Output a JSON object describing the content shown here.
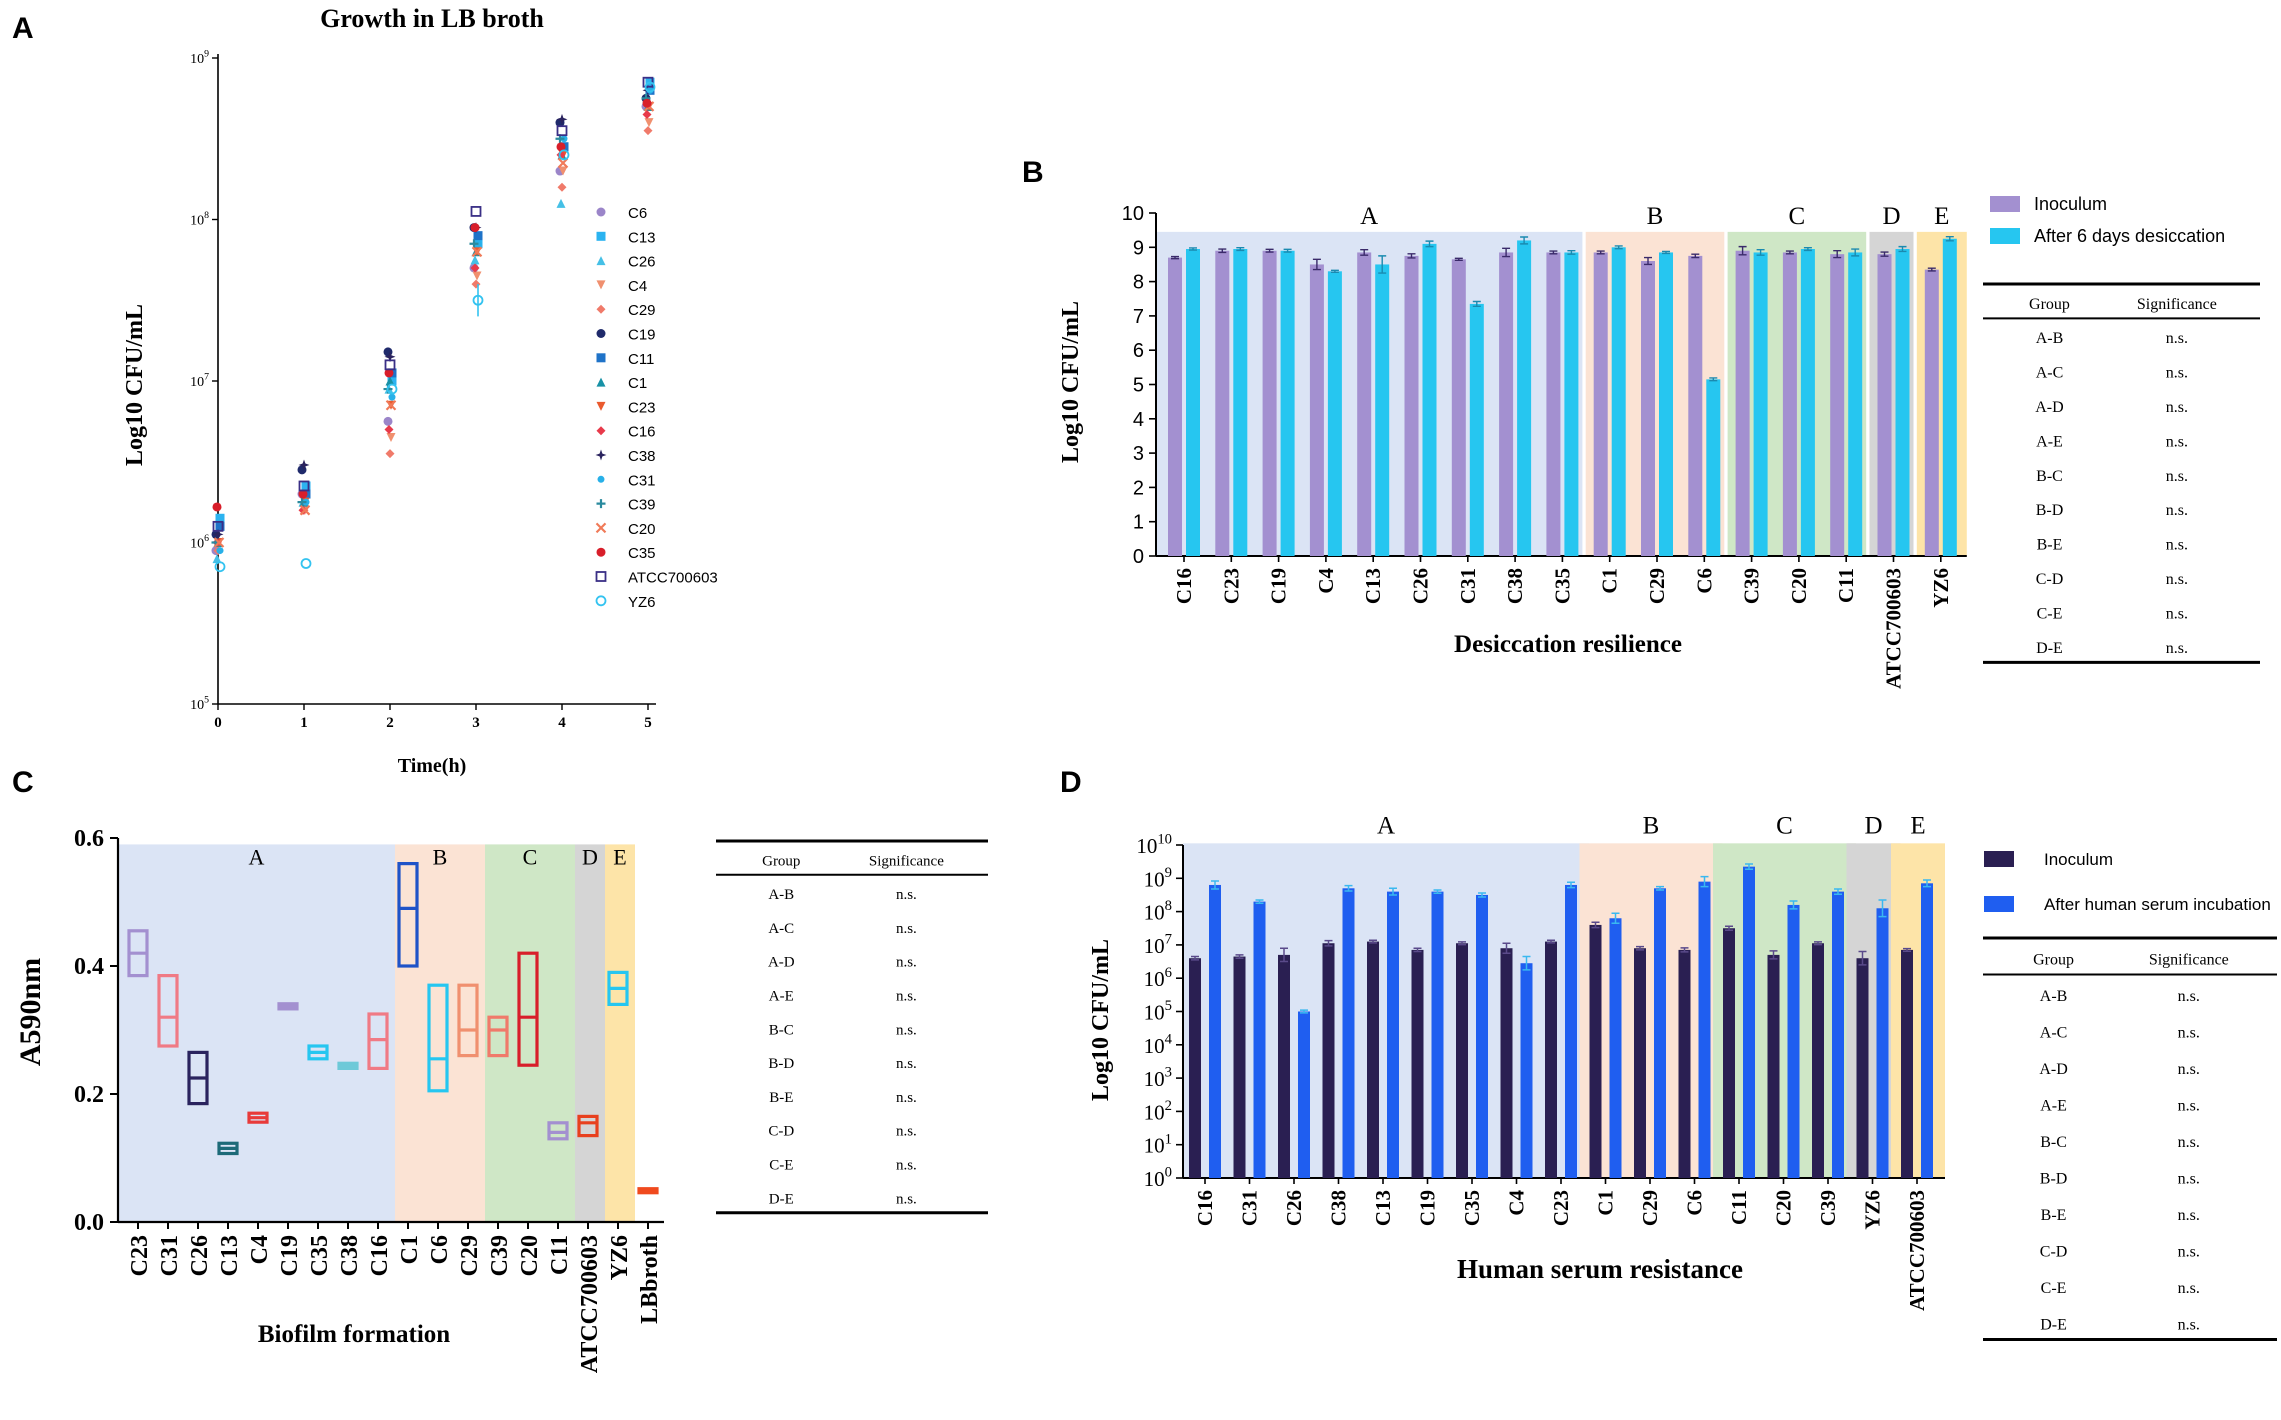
{
  "panel_letters": [
    "A",
    "B",
    "C",
    "D"
  ],
  "chart_data": [
    {
      "panel": "A",
      "type": "scatter",
      "title": "Growth in LB broth",
      "xlabel": "Time(h)",
      "ylabel": "Log10 CFU/mL",
      "x_ticks": [
        "0",
        "1",
        "2",
        "3",
        "4",
        "5"
      ],
      "y_scale": "log",
      "y_ticks": [
        {
          "base": "10",
          "exp": "5"
        },
        {
          "base": "10",
          "exp": "6"
        },
        {
          "base": "10",
          "exp": "7"
        },
        {
          "base": "10",
          "exp": "8"
        },
        {
          "base": "10",
          "exp": "9"
        }
      ],
      "ylim": [
        5,
        9
      ],
      "x": [
        0,
        1,
        2,
        3,
        4,
        5
      ],
      "series": [
        {
          "name": "C6",
          "color": "#9b85c9",
          "marker": "circle",
          "values": [
            5.95,
            6.3,
            6.75,
            7.7,
            8.3,
            8.7
          ]
        },
        {
          "name": "C13",
          "color": "#2bb3f0",
          "marker": "square",
          "values": [
            6.15,
            6.35,
            7.0,
            7.85,
            8.45,
            8.85
          ]
        },
        {
          "name": "C26",
          "color": "#45c0e6",
          "marker": "triangle",
          "values": [
            5.9,
            6.25,
            6.95,
            7.75,
            8.1,
            8.75
          ]
        },
        {
          "name": "C4",
          "color": "#f0906f",
          "marker": "triangle-down",
          "values": [
            6.0,
            6.2,
            6.65,
            7.65,
            8.3,
            8.6
          ]
        },
        {
          "name": "C29",
          "color": "#f07a6a",
          "marker": "diamond",
          "values": [
            5.95,
            6.2,
            6.55,
            7.6,
            8.2,
            8.55
          ]
        },
        {
          "name": "C19",
          "color": "#1f2a6b",
          "marker": "circle",
          "values": [
            6.05,
            6.45,
            7.18,
            7.95,
            8.6,
            8.75
          ]
        },
        {
          "name": "C11",
          "color": "#1f73c8",
          "marker": "square",
          "values": [
            6.1,
            6.3,
            7.05,
            7.9,
            8.45,
            8.8
          ]
        },
        {
          "name": "C1",
          "color": "#1791a6",
          "marker": "triangle",
          "values": [
            6.0,
            6.25,
            7.0,
            7.8,
            8.4,
            8.7
          ]
        },
        {
          "name": "C23",
          "color": "#ea5a2e",
          "marker": "triangle-down",
          "values": [
            6.0,
            6.25,
            6.85,
            7.8,
            8.4,
            8.7
          ]
        },
        {
          "name": "C16",
          "color": "#e83a4a",
          "marker": "diamond",
          "values": [
            6.0,
            6.2,
            6.7,
            7.7,
            8.4,
            8.65
          ]
        },
        {
          "name": "C38",
          "color": "#2a235e",
          "marker": "star",
          "values": [
            6.05,
            6.48,
            7.15,
            7.95,
            8.62,
            8.8
          ]
        },
        {
          "name": "C31",
          "color": "#28b0e8",
          "marker": "circle-small",
          "values": [
            5.95,
            6.25,
            6.9,
            7.85,
            8.5,
            8.8
          ]
        },
        {
          "name": "C39",
          "color": "#2a8a9e",
          "marker": "plus",
          "values": [
            6.0,
            6.25,
            6.95,
            7.85,
            8.5,
            8.75
          ]
        },
        {
          "name": "C20",
          "color": "#f07a58",
          "marker": "x",
          "values": [
            6.0,
            6.2,
            6.85,
            7.8,
            8.35,
            8.7
          ]
        },
        {
          "name": "C35",
          "color": "#d81e2a",
          "marker": "circle",
          "values": [
            6.22,
            6.3,
            7.05,
            7.95,
            8.45,
            8.72
          ]
        },
        {
          "name": "ATCC700603",
          "color": "#3a2f86",
          "marker": "square-open",
          "values": [
            6.1,
            6.35,
            7.1,
            8.05,
            8.55,
            8.85
          ]
        },
        {
          "name": "YZ6",
          "color": "#33c3f0",
          "marker": "circle-open",
          "values": [
            5.85,
            5.87,
            6.95,
            7.5,
            8.4,
            8.82
          ]
        }
      ]
    },
    {
      "panel": "B",
      "type": "bar",
      "title": "Desiccation resilience",
      "xlabel": "Desiccation resilience",
      "ylabel": "Log10 CFU/mL",
      "ylim": [
        0,
        10
      ],
      "y_ticks": [
        "0",
        "1",
        "2",
        "3",
        "4",
        "5",
        "6",
        "7",
        "8",
        "9",
        "10"
      ],
      "categories": [
        "C16",
        "C23",
        "C19",
        "C4",
        "C13",
        "C26",
        "C31",
        "C38",
        "C35",
        "C1",
        "C29",
        "C6",
        "C39",
        "C20",
        "C11",
        "ATCC700603",
        "YZ6"
      ],
      "groups": [
        {
          "label": "A",
          "start": 0,
          "end": 8,
          "color": "#dbe4f5"
        },
        {
          "label": "B",
          "start": 9,
          "end": 11,
          "color": "#fbe3d4"
        },
        {
          "label": "C",
          "start": 12,
          "end": 14,
          "color": "#cfe7c6"
        },
        {
          "label": "D",
          "start": 15,
          "end": 15,
          "color": "#d5d5d5"
        },
        {
          "label": "E",
          "start": 16,
          "end": 16,
          "color": "#fde4a8"
        }
      ],
      "series": [
        {
          "name": "Inoculum",
          "color": "#a390d0",
          "values": [
            8.7,
            8.9,
            8.9,
            8.5,
            8.85,
            8.75,
            8.65,
            8.85,
            8.85,
            8.85,
            8.6,
            8.75,
            8.9,
            8.85,
            8.8,
            8.8,
            8.35
          ],
          "errors": [
            0.03,
            0.05,
            0.04,
            0.15,
            0.08,
            0.06,
            0.03,
            0.12,
            0.04,
            0.04,
            0.1,
            0.05,
            0.12,
            0.04,
            0.1,
            0.06,
            0.04
          ]
        },
        {
          "name": "After 6 days desiccation",
          "color": "#26c6f0",
          "values": [
            8.95,
            8.95,
            8.9,
            8.3,
            8.5,
            9.1,
            7.35,
            9.2,
            8.85,
            9.0,
            8.85,
            5.15,
            8.85,
            8.95,
            8.85,
            8.95,
            9.25
          ],
          "errors": [
            0.03,
            0.04,
            0.04,
            0.03,
            0.25,
            0.08,
            0.07,
            0.1,
            0.05,
            0.04,
            0.03,
            0.04,
            0.08,
            0.04,
            0.1,
            0.07,
            0.06
          ]
        }
      ],
      "table": {
        "headers": [
          "Group",
          "Significance"
        ],
        "rows": [
          [
            "A-B",
            "n.s."
          ],
          [
            "A-C",
            "n.s."
          ],
          [
            "A-D",
            "n.s."
          ],
          [
            "A-E",
            "n.s."
          ],
          [
            "B-C",
            "n.s."
          ],
          [
            "B-D",
            "n.s."
          ],
          [
            "B-E",
            "n.s."
          ],
          [
            "C-D",
            "n.s."
          ],
          [
            "C-E",
            "n.s."
          ],
          [
            "D-E",
            "n.s."
          ]
        ]
      }
    },
    {
      "panel": "C",
      "type": "box",
      "title": "Biofilm formation",
      "xlabel": "Biofilm formation",
      "ylabel": "A590nm",
      "ylim": [
        0,
        0.6
      ],
      "y_ticks": [
        "0.0",
        "0.2",
        "0.4",
        "0.6"
      ],
      "categories": [
        "C23",
        "C31",
        "C26",
        "C13",
        "C4",
        "C19",
        "C35",
        "C38",
        "C16",
        "C1",
        "C6",
        "C29",
        "C39",
        "C20",
        "C11",
        "ATCC700603",
        "YZ6",
        "LBbroth"
      ],
      "groups": [
        {
          "label": "A",
          "start": 0,
          "end": 8,
          "color": "#dbe4f5"
        },
        {
          "label": "B",
          "start": 9,
          "end": 11,
          "color": "#fbe3d4"
        },
        {
          "label": "C",
          "start": 12,
          "end": 14,
          "color": "#cfe7c6"
        },
        {
          "label": "D",
          "start": 15,
          "end": 15,
          "color": "#d5d5d5"
        },
        {
          "label": "E",
          "start": 16,
          "end": 16,
          "color": "#fde4a8"
        }
      ],
      "boxes": [
        {
          "low": 0.385,
          "mid": 0.42,
          "high": 0.455,
          "color": "#a390d0"
        },
        {
          "low": 0.275,
          "mid": 0.32,
          "high": 0.385,
          "color": "#f07a85"
        },
        {
          "low": 0.185,
          "mid": 0.225,
          "high": 0.265,
          "color": "#2a235e"
        },
        {
          "low": 0.107,
          "mid": 0.115,
          "high": 0.123,
          "color": "#1d6a78"
        },
        {
          "low": 0.156,
          "mid": 0.163,
          "high": 0.17,
          "color": "#e83a3a"
        },
        {
          "low": 0.333,
          "mid": 0.337,
          "high": 0.341,
          "color": "#a390d0"
        },
        {
          "low": 0.255,
          "mid": 0.265,
          "high": 0.275,
          "color": "#26c6f0"
        },
        {
          "low": 0.24,
          "mid": 0.244,
          "high": 0.248,
          "color": "#6ec9d8"
        },
        {
          "low": 0.24,
          "mid": 0.285,
          "high": 0.325,
          "color": "#f07a85"
        },
        {
          "low": 0.4,
          "mid": 0.49,
          "high": 0.56,
          "color": "#1f53c8"
        },
        {
          "low": 0.205,
          "mid": 0.255,
          "high": 0.37,
          "color": "#26c6f0"
        },
        {
          "low": 0.26,
          "mid": 0.3,
          "high": 0.37,
          "color": "#f0906f"
        },
        {
          "low": 0.26,
          "mid": 0.3,
          "high": 0.32,
          "color": "#f07a6a"
        },
        {
          "low": 0.245,
          "mid": 0.32,
          "high": 0.42,
          "color": "#d81e2a"
        },
        {
          "low": 0.13,
          "mid": 0.14,
          "high": 0.155,
          "color": "#a390d0"
        },
        {
          "low": 0.135,
          "mid": 0.155,
          "high": 0.165,
          "color": "#e8401e"
        },
        {
          "low": 0.34,
          "mid": 0.365,
          "high": 0.39,
          "color": "#26c6f0"
        },
        {
          "low": 0.048,
          "mid": 0.05,
          "high": 0.052,
          "color": "#f04a1e"
        }
      ],
      "table": {
        "headers": [
          "Group",
          "Significance"
        ],
        "rows": [
          [
            "A-B",
            "n.s."
          ],
          [
            "A-C",
            "n.s."
          ],
          [
            "A-D",
            "n.s."
          ],
          [
            "A-E",
            "n.s."
          ],
          [
            "B-C",
            "n.s."
          ],
          [
            "B-D",
            "n.s."
          ],
          [
            "B-E",
            "n.s."
          ],
          [
            "C-D",
            "n.s."
          ],
          [
            "C-E",
            "n.s."
          ],
          [
            "D-E",
            "n.s."
          ]
        ]
      }
    },
    {
      "panel": "D",
      "type": "bar",
      "title": "Human serum resistance",
      "xlabel": "Human serum resistance",
      "ylabel": "Log10 CFU/mL",
      "y_scale": "log",
      "ylim": [
        0,
        10
      ],
      "y_ticks": [
        {
          "base": "10",
          "exp": "0"
        },
        {
          "base": "10",
          "exp": "1"
        },
        {
          "base": "10",
          "exp": "2"
        },
        {
          "base": "10",
          "exp": "3"
        },
        {
          "base": "10",
          "exp": "4"
        },
        {
          "base": "10",
          "exp": "5"
        },
        {
          "base": "10",
          "exp": "6"
        },
        {
          "base": "10",
          "exp": "7"
        },
        {
          "base": "10",
          "exp": "8"
        },
        {
          "base": "10",
          "exp": "9"
        },
        {
          "base": "10",
          "exp": "10"
        }
      ],
      "categories": [
        "C16",
        "C31",
        "C26",
        "C38",
        "C13",
        "C19",
        "C35",
        "C4",
        "C23",
        "C1",
        "C29",
        "C6",
        "C11",
        "C20",
        "C39",
        "YZ6",
        "ATCC700603"
      ],
      "groups": [
        {
          "label": "A",
          "start": 0,
          "end": 8,
          "color": "#dbe4f5"
        },
        {
          "label": "B",
          "start": 9,
          "end": 11,
          "color": "#fbe3d4"
        },
        {
          "label": "C",
          "start": 12,
          "end": 14,
          "color": "#cfe7c6"
        },
        {
          "label": "D",
          "start": 15,
          "end": 15,
          "color": "#d5d5d5"
        },
        {
          "label": "E",
          "start": 16,
          "end": 16,
          "color": "#fde4a8"
        }
      ],
      "series": [
        {
          "name": "Inoculum",
          "color": "#2a1f52",
          "values": [
            6.6,
            6.65,
            6.7,
            7.05,
            7.1,
            6.85,
            7.05,
            6.9,
            7.1,
            7.6,
            6.9,
            6.85,
            7.5,
            6.7,
            7.05,
            6.6,
            6.85
          ],
          "errors": [
            0.05,
            0.05,
            0.2,
            0.08,
            0.04,
            0.05,
            0.04,
            0.15,
            0.04,
            0.08,
            0.05,
            0.06,
            0.06,
            0.12,
            0.04,
            0.2,
            0.04
          ]
        },
        {
          "name": "After human serum incubation",
          "color": "#1f5ef0",
          "values": [
            8.8,
            8.3,
            5.0,
            8.7,
            8.6,
            8.6,
            8.5,
            6.45,
            8.8,
            7.8,
            8.7,
            8.9,
            9.35,
            8.2,
            8.6,
            8.1,
            8.85
          ],
          "errors": [
            0.12,
            0.05,
            0.04,
            0.08,
            0.1,
            0.05,
            0.06,
            0.2,
            0.08,
            0.15,
            0.05,
            0.15,
            0.08,
            0.12,
            0.08,
            0.25,
            0.1
          ]
        }
      ],
      "table": {
        "headers": [
          "Group",
          "Significance"
        ],
        "rows": [
          [
            "A-B",
            "n.s."
          ],
          [
            "A-C",
            "n.s."
          ],
          [
            "A-D",
            "n.s."
          ],
          [
            "A-E",
            "n.s."
          ],
          [
            "B-C",
            "n.s."
          ],
          [
            "B-D",
            "n.s."
          ],
          [
            "B-E",
            "n.s."
          ],
          [
            "C-D",
            "n.s."
          ],
          [
            "C-E",
            "n.s."
          ],
          [
            "D-E",
            "n.s."
          ]
        ]
      }
    }
  ]
}
